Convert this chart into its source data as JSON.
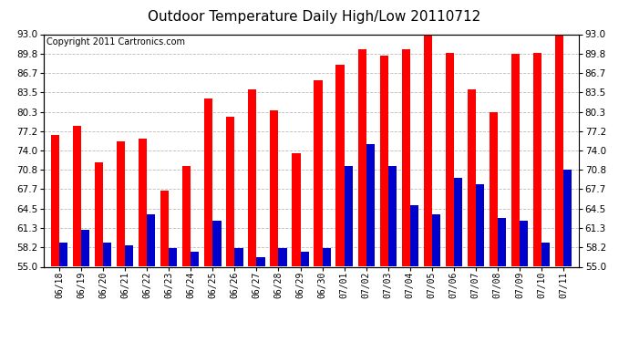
{
  "title": "Outdoor Temperature Daily High/Low 20110712",
  "copyright": "Copyright 2011 Cartronics.com",
  "categories": [
    "06/18",
    "06/19",
    "06/20",
    "06/21",
    "06/22",
    "06/23",
    "06/24",
    "06/25",
    "06/26",
    "06/27",
    "06/28",
    "06/29",
    "06/30",
    "07/01",
    "07/02",
    "07/03",
    "07/04",
    "07/05",
    "07/06",
    "07/07",
    "07/08",
    "07/09",
    "07/10",
    "07/11"
  ],
  "highs": [
    76.5,
    78.0,
    72.0,
    75.5,
    76.0,
    67.5,
    71.5,
    82.5,
    79.5,
    84.0,
    80.5,
    73.5,
    85.5,
    88.0,
    90.5,
    89.5,
    90.5,
    93.0,
    90.0,
    84.0,
    80.3,
    89.8,
    90.0,
    93.0
  ],
  "lows": [
    59.0,
    61.0,
    59.0,
    58.5,
    63.5,
    58.0,
    57.5,
    62.5,
    58.0,
    56.5,
    58.0,
    57.5,
    58.0,
    71.5,
    75.0,
    71.5,
    65.0,
    63.5,
    69.5,
    68.5,
    63.0,
    62.5,
    59.0,
    70.8
  ],
  "baseline": 55.0,
  "bar_width": 0.38,
  "ylim": [
    55.0,
    93.0
  ],
  "yticks": [
    55.0,
    58.2,
    61.3,
    64.5,
    67.7,
    70.8,
    74.0,
    77.2,
    80.3,
    83.5,
    86.7,
    89.8,
    93.0
  ],
  "high_color": "#ff0000",
  "low_color": "#0000cc",
  "bg_color": "#ffffff",
  "grid_color": "#bbbbbb",
  "title_fontsize": 11,
  "copyright_fontsize": 7,
  "tick_fontsize": 7.5,
  "xtick_fontsize": 7
}
